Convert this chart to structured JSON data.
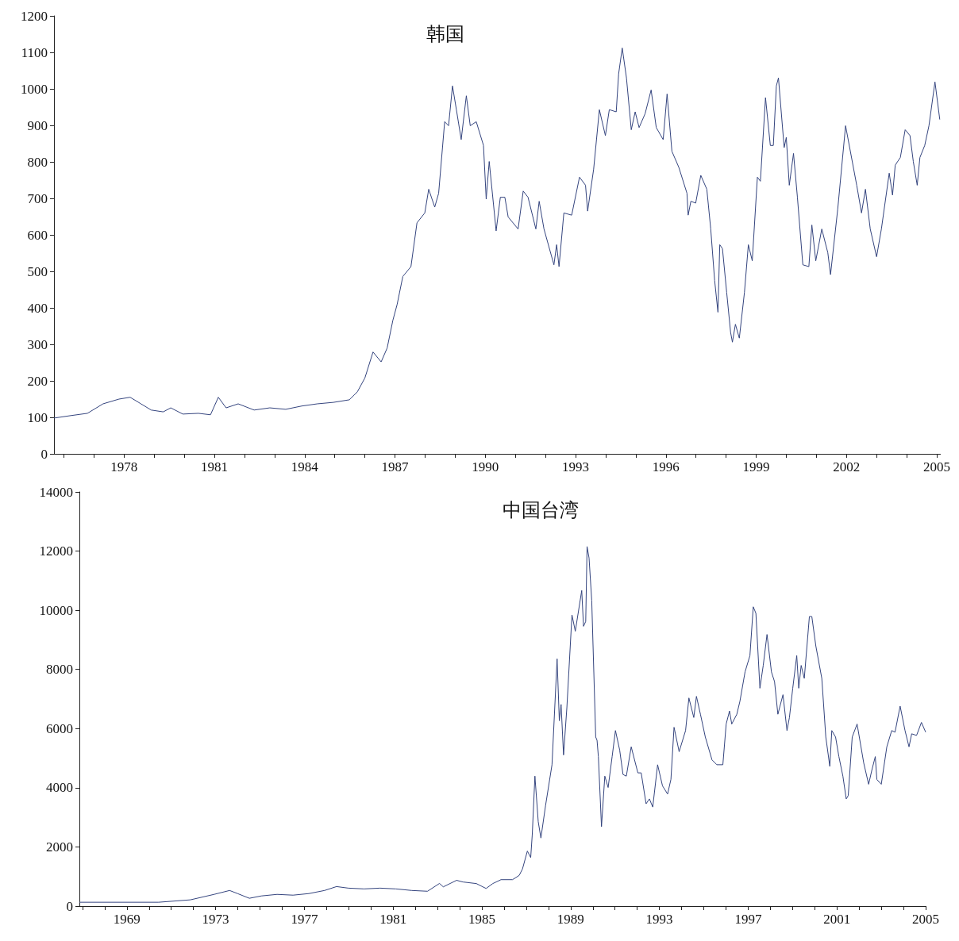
{
  "chart_data": [
    {
      "type": "line",
      "title": "韩国",
      "grid": false,
      "marker": "none",
      "line_style": "solid",
      "xlim": [
        1975.67,
        2005.12
      ],
      "ylim": [
        0,
        1200
      ],
      "xticks": [
        {
          "value": 1976,
          "label": null
        },
        {
          "value": 1977,
          "label": null
        },
        1978,
        {
          "value": 1979,
          "label": null
        },
        {
          "value": 1980,
          "label": null
        },
        1981,
        {
          "value": 1982,
          "label": null
        },
        {
          "value": 1983,
          "label": null
        },
        1984,
        {
          "value": 1985,
          "label": null
        },
        {
          "value": 1986,
          "label": null
        },
        1987,
        {
          "value": 1988,
          "label": null
        },
        {
          "value": 1989,
          "label": null
        },
        1990,
        {
          "value": 1991,
          "label": null
        },
        {
          "value": 1992,
          "label": null
        },
        1993,
        {
          "value": 1994,
          "label": null
        },
        {
          "value": 1995,
          "label": null
        },
        1996,
        {
          "value": 1997,
          "label": null
        },
        {
          "value": 1998,
          "label": null
        },
        1999,
        {
          "value": 2000,
          "label": null
        },
        {
          "value": 2001,
          "label": null
        },
        2002,
        {
          "value": 2003,
          "label": null
        },
        {
          "value": 2004,
          "label": null
        },
        2005
      ],
      "yticks": [
        0,
        100,
        200,
        300,
        400,
        500,
        600,
        700,
        800,
        900,
        1000,
        1100,
        1200
      ],
      "series": [
        {
          "color": "#34447e",
          "x": [
            1975.67,
            1976.25,
            1976.78,
            1977.3,
            1977.83,
            1978.2,
            1978.56,
            1978.9,
            1979.3,
            1979.55,
            1979.95,
            1980.47,
            1980.87,
            1981.13,
            1981.39,
            1981.79,
            1982.32,
            1982.84,
            1983.37,
            1983.9,
            1984.42,
            1984.95,
            1985.48,
            1985.75,
            1986.0,
            1986.27,
            1986.54,
            1986.74,
            1986.93,
            1987.07,
            1987.26,
            1987.53,
            1987.73,
            1987.99,
            1988.12,
            1988.32,
            1988.45,
            1988.65,
            1988.78,
            1988.91,
            1989.04,
            1989.2,
            1989.37,
            1989.5,
            1989.7,
            1989.94,
            1990.03,
            1990.13,
            1990.36,
            1990.5,
            1990.65,
            1990.76,
            1991.09,
            1991.26,
            1991.42,
            1991.68,
            1991.79,
            1991.95,
            1992.28,
            1992.37,
            1992.45,
            1992.61,
            1992.87,
            1993.13,
            1993.33,
            1993.4,
            1993.6,
            1993.79,
            1993.99,
            1994.12,
            1994.35,
            1994.43,
            1994.55,
            1994.69,
            1994.85,
            1994.98,
            1995.11,
            1995.31,
            1995.51,
            1995.68,
            1995.91,
            1996.04,
            1996.2,
            1996.43,
            1996.7,
            1996.74,
            1996.83,
            1996.99,
            1997.16,
            1997.36,
            1997.49,
            1997.62,
            1997.73,
            1997.79,
            1997.88,
            1998.02,
            1998.15,
            1998.21,
            1998.31,
            1998.44,
            1998.61,
            1998.74,
            1998.87,
            1999.04,
            1999.14,
            1999.31,
            1999.47,
            1999.57,
            1999.67,
            1999.74,
            1999.93,
            2000.0,
            2000.1,
            2000.24,
            2000.37,
            2000.55,
            2000.75,
            2000.85,
            2000.98,
            2001.18,
            2001.38,
            2001.47,
            2001.71,
            2001.97,
            2002.34,
            2002.5,
            2002.63,
            2002.79,
            2003.0,
            2003.16,
            2003.42,
            2003.53,
            2003.62,
            2003.79,
            2003.95,
            2004.11,
            2004.22,
            2004.35,
            2004.44,
            2004.6,
            2004.74,
            2004.94,
            2005.1
          ],
          "values": [
            98,
            105,
            111,
            137,
            150,
            155,
            137,
            120,
            115,
            126,
            109,
            111,
            107,
            155,
            126,
            137,
            120,
            126,
            122,
            131,
            137,
            141,
            148,
            170,
            208,
            279,
            252,
            290,
            366,
            409,
            486,
            513,
            633,
            660,
            725,
            676,
            714,
            910,
            899,
            1008,
            943,
            861,
            981,
            899,
            910,
            845,
            698,
            801,
            611,
            703,
            703,
            649,
            616,
            720,
            703,
            616,
            692,
            616,
            518,
            573,
            513,
            660,
            654,
            758,
            736,
            665,
            780,
            943,
            872,
            943,
            937,
            1041,
            1112,
            1030,
            888,
            937,
            894,
            932,
            997,
            894,
            861,
            986,
            829,
            785,
            714,
            654,
            692,
            687,
            763,
            725,
            616,
            475,
            388,
            573,
            562,
            442,
            333,
            306,
            355,
            317,
            442,
            573,
            529,
            758,
            747,
            976,
            845,
            845,
            1008,
            1030,
            839,
            867,
            736,
            823,
            703,
            518,
            513,
            627,
            529,
            616,
            551,
            491,
            671,
            899,
            736,
            660,
            725,
            616,
            540,
            616,
            769,
            709,
            791,
            812,
            888,
            872,
            801,
            736,
            812,
            845,
            899,
            1019,
            916
          ]
        }
      ]
    },
    {
      "type": "line",
      "title": "中国台湾",
      "grid": false,
      "marker": "none",
      "line_style": "solid",
      "xlim": [
        1966.86,
        2005
      ],
      "ylim": [
        0,
        14000
      ],
      "xticks": [
        {
          "value": 1967,
          "label": null
        },
        {
          "value": 1968,
          "label": null
        },
        1969,
        {
          "value": 1970,
          "label": null
        },
        {
          "value": 1971,
          "label": null
        },
        {
          "value": 1972,
          "label": null
        },
        1973,
        {
          "value": 1974,
          "label": null
        },
        {
          "value": 1975,
          "label": null
        },
        {
          "value": 1976,
          "label": null
        },
        1977,
        {
          "value": 1978,
          "label": null
        },
        {
          "value": 1979,
          "label": null
        },
        {
          "value": 1980,
          "label": null
        },
        1981,
        {
          "value": 1982,
          "label": null
        },
        {
          "value": 1983,
          "label": null
        },
        {
          "value": 1984,
          "label": null
        },
        1985,
        {
          "value": 1986,
          "label": null
        },
        {
          "value": 1987,
          "label": null
        },
        {
          "value": 1988,
          "label": null
        },
        1989,
        {
          "value": 1990,
          "label": null
        },
        {
          "value": 1991,
          "label": null
        },
        {
          "value": 1992,
          "label": null
        },
        1993,
        {
          "value": 1994,
          "label": null
        },
        {
          "value": 1995,
          "label": null
        },
        {
          "value": 1996,
          "label": null
        },
        1997,
        {
          "value": 1998,
          "label": null
        },
        {
          "value": 1999,
          "label": null
        },
        {
          "value": 2000,
          "label": null
        },
        2001,
        {
          "value": 2002,
          "label": null
        },
        {
          "value": 2003,
          "label": null
        },
        {
          "value": 2004,
          "label": null
        },
        2005
      ],
      "yticks": [
        0,
        2000,
        4000,
        6000,
        8000,
        10000,
        12000,
        14000
      ],
      "series": [
        {
          "color": "#34447e",
          "x": [
            1966.86,
            1970.43,
            1971.86,
            1972.93,
            1973.63,
            1973.99,
            1974.52,
            1975.06,
            1975.77,
            1976.49,
            1977.2,
            1977.91,
            1978.45,
            1978.98,
            1979.69,
            1980.41,
            1981.12,
            1981.84,
            1982.55,
            1983.09,
            1983.26,
            1983.86,
            1984.15,
            1984.75,
            1985.19,
            1985.49,
            1985.86,
            1986.38,
            1986.68,
            1986.83,
            1987.05,
            1987.2,
            1987.27,
            1987.39,
            1987.54,
            1987.66,
            1987.87,
            1988.16,
            1988.39,
            1988.49,
            1988.57,
            1988.68,
            1988.83,
            1989.06,
            1989.21,
            1989.5,
            1989.58,
            1989.68,
            1989.74,
            1989.83,
            1989.95,
            1990.13,
            1990.19,
            1990.25,
            1990.39,
            1990.54,
            1990.69,
            1990.87,
            1991.02,
            1991.21,
            1991.36,
            1991.51,
            1991.73,
            1992.03,
            1992.18,
            1992.4,
            1992.55,
            1992.7,
            1992.92,
            1993.14,
            1993.37,
            1993.52,
            1993.66,
            1993.89,
            1994.18,
            1994.33,
            1994.55,
            1994.67,
            1994.85,
            1995.07,
            1995.37,
            1995.59,
            1995.86,
            1996.01,
            1996.16,
            1996.26,
            1996.49,
            1996.63,
            1996.86,
            1997.08,
            1997.23,
            1997.35,
            1997.53,
            1997.68,
            1997.85,
            1998.05,
            1998.19,
            1998.34,
            1998.57,
            1998.75,
            1998.86,
            1999.01,
            1999.19,
            1999.28,
            1999.39,
            1999.53,
            1999.76,
            1999.87,
            2000.05,
            2000.32,
            2000.5,
            2000.68,
            2000.77,
            2000.94,
            2001.09,
            2001.27,
            2001.42,
            2001.51,
            2001.69,
            2001.91,
            2002.21,
            2002.43,
            2002.58,
            2002.73,
            2002.8,
            2003.0,
            2003.25,
            2003.47,
            2003.62,
            2003.85,
            2004.07,
            2004.25,
            2004.37,
            2004.59,
            2004.81,
            2005.0
          ],
          "values": [
            130,
            130,
            211,
            396,
            528,
            423,
            264,
            343,
            396,
            370,
            423,
            528,
            660,
            607,
            581,
            607,
            581,
            528,
            502,
            766,
            650,
            871,
            815,
            761,
            596,
            761,
            893,
            893,
            1036,
            1256,
            1861,
            1641,
            2411,
            4393,
            2852,
            2301,
            3402,
            4778,
            8356,
            6265,
            6815,
            5108,
            6705,
            9842,
            9292,
            10668,
            9457,
            9622,
            12153,
            11768,
            10337,
            5714,
            5604,
            5053,
            2687,
            4393,
            4008,
            5053,
            5934,
            5274,
            4448,
            4393,
            5384,
            4503,
            4503,
            3458,
            3623,
            3348,
            4778,
            4063,
            3788,
            4283,
            6044,
            5219,
            5934,
            7035,
            6374,
            7090,
            6485,
            5714,
            4944,
            4778,
            4778,
            6154,
            6595,
            6154,
            6485,
            6925,
            7916,
            8466,
            10117,
            9897,
            7365,
            8136,
            9182,
            7916,
            7585,
            6485,
            7145,
            5934,
            6374,
            7365,
            8466,
            7365,
            8136,
            7696,
            9787,
            9787,
            8796,
            7696,
            5714,
            4723,
            5934,
            5714,
            5053,
            4393,
            3623,
            3733,
            5714,
            6154,
            4833,
            4118,
            4613,
            5053,
            4283,
            4118,
            5384,
            5934,
            5879,
            6760,
            5934,
            5384,
            5824,
            5769,
            6209,
            5879
          ]
        }
      ]
    }
  ]
}
